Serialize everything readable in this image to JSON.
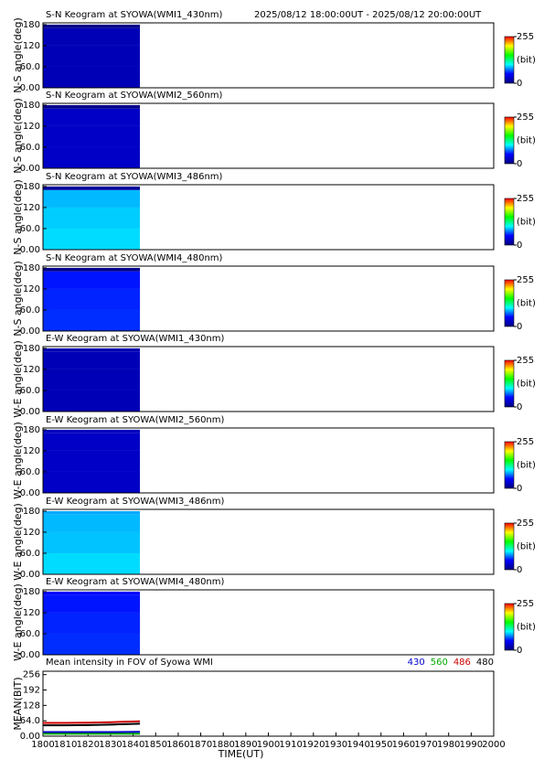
{
  "header": {
    "time_range": "2025/08/12 18:00:00UT - 2025/08/12 20:00:00UT"
  },
  "colormap": [
    "#000080",
    "#0000ff",
    "#00ffff",
    "#00ff00",
    "#ffff00",
    "#ff0000"
  ],
  "chart_data": [
    {
      "type": "keogram",
      "title": "S-N Keogram at SYOWA(WMI1_430nm)",
      "ylabel": "N-S angle(deg)",
      "xlim": [
        1800,
        2000
      ],
      "ylim": [
        0,
        185
      ],
      "yticks": [
        {
          "value": 0,
          "label": "0.00"
        },
        {
          "value": 60,
          "label": "60.0"
        },
        120,
        180
      ],
      "xbins": [
        1800,
        1843
      ],
      "ybins": [
        0,
        60,
        120,
        170,
        180
      ],
      "values": [
        22,
        22,
        22,
        5
      ],
      "colorbar": {
        "lim": [
          0,
          255
        ],
        "ticks": [
          0,
          255
        ],
        "label": "(bit)"
      }
    },
    {
      "type": "keogram",
      "title": "S-N Keogram at SYOWA(WMI2_560nm)",
      "ylabel": "N-S angle(deg)",
      "xlim": [
        1800,
        2000
      ],
      "ylim": [
        0,
        185
      ],
      "yticks": [
        {
          "value": 0,
          "label": "0.00"
        },
        {
          "value": 60,
          "label": "60.0"
        },
        120,
        180
      ],
      "xbins": [
        1800,
        1843
      ],
      "ybins": [
        0,
        60,
        120,
        170,
        180
      ],
      "values": [
        28,
        28,
        28,
        5
      ],
      "colorbar": {
        "lim": [
          0,
          255
        ],
        "ticks": [
          0,
          255
        ],
        "label": "(bit)"
      }
    },
    {
      "type": "keogram",
      "title": "S-N Keogram at SYOWA(WMI3_486nm)",
      "ylabel": "N-S angle(deg)",
      "xlim": [
        1800,
        2000
      ],
      "ylim": [
        0,
        185
      ],
      "yticks": [
        {
          "value": 0,
          "label": "0.00"
        },
        {
          "value": 60,
          "label": "60.0"
        },
        120,
        180
      ],
      "xbins": [
        1800,
        1843
      ],
      "ybins": [
        0,
        60,
        120,
        170,
        180
      ],
      "values": [
        95,
        92,
        88,
        10
      ],
      "colorbar": {
        "lim": [
          0,
          255
        ],
        "ticks": [
          0,
          255
        ],
        "label": "(bit)"
      }
    },
    {
      "type": "keogram",
      "title": "S-N Keogram at SYOWA(WMI4_480nm)",
      "ylabel": "N-S angle(deg)",
      "xlim": [
        1800,
        2000
      ],
      "ylim": [
        0,
        185
      ],
      "yticks": [
        {
          "value": 0,
          "label": "0.00"
        },
        {
          "value": 60,
          "label": "60.0"
        },
        120,
        180
      ],
      "xbins": [
        1800,
        1843
      ],
      "ybins": [
        0,
        60,
        120,
        170,
        180
      ],
      "values": [
        60,
        58,
        55,
        5
      ],
      "colorbar": {
        "lim": [
          0,
          255
        ],
        "ticks": [
          0,
          255
        ],
        "label": "(bit)"
      }
    },
    {
      "type": "keogram",
      "title": "E-W Keogram at SYOWA(WMI1_430nm)",
      "ylabel": "W-E angle(deg)",
      "xlim": [
        1800,
        2000
      ],
      "ylim": [
        0,
        185
      ],
      "yticks": [
        {
          "value": 0,
          "label": "0.00"
        },
        {
          "value": 60,
          "label": "60.0"
        },
        120,
        180
      ],
      "xbins": [
        1800,
        1843
      ],
      "ybins": [
        0,
        60,
        120,
        170,
        180
      ],
      "values": [
        22,
        22,
        22,
        20
      ],
      "colorbar": {
        "lim": [
          0,
          255
        ],
        "ticks": [
          0,
          255
        ],
        "label": "(bit)"
      }
    },
    {
      "type": "keogram",
      "title": "E-W Keogram at SYOWA(WMI2_560nm)",
      "ylabel": "W-E angle(deg)",
      "xlim": [
        1800,
        2000
      ],
      "ylim": [
        0,
        185
      ],
      "yticks": [
        {
          "value": 0,
          "label": "0.00"
        },
        {
          "value": 60,
          "label": "60.0"
        },
        120,
        180
      ],
      "xbins": [
        1800,
        1843
      ],
      "ybins": [
        0,
        60,
        120,
        170,
        180
      ],
      "values": [
        28,
        28,
        28,
        25
      ],
      "colorbar": {
        "lim": [
          0,
          255
        ],
        "ticks": [
          0,
          255
        ],
        "label": "(bit)"
      }
    },
    {
      "type": "keogram",
      "title": "E-W Keogram at SYOWA(WMI3_486nm)",
      "ylabel": "W-E angle(deg)",
      "xlim": [
        1800,
        2000
      ],
      "ylim": [
        0,
        185
      ],
      "yticks": [
        {
          "value": 0,
          "label": "0.00"
        },
        {
          "value": 60,
          "label": "60.0"
        },
        120,
        180
      ],
      "xbins": [
        1800,
        1843
      ],
      "ybins": [
        0,
        60,
        120,
        170,
        180
      ],
      "values": [
        95,
        90,
        88,
        85
      ],
      "colorbar": {
        "lim": [
          0,
          255
        ],
        "ticks": [
          0,
          255
        ],
        "label": "(bit)"
      }
    },
    {
      "type": "keogram",
      "title": "E-W Keogram at SYOWA(WMI4_480nm)",
      "ylabel": "W-E angle(deg)",
      "xlim": [
        1800,
        2000
      ],
      "ylim": [
        0,
        185
      ],
      "yticks": [
        {
          "value": 0,
          "label": "0.00"
        },
        {
          "value": 60,
          "label": "60.0"
        },
        120,
        180
      ],
      "xbins": [
        1800,
        1843
      ],
      "ybins": [
        0,
        60,
        120,
        170,
        180
      ],
      "values": [
        60,
        58,
        55,
        50
      ],
      "colorbar": {
        "lim": [
          0,
          255
        ],
        "ticks": [
          0,
          255
        ],
        "label": "(bit)"
      }
    },
    {
      "type": "line",
      "title": "Mean intensity in FOV of Syowa WMI",
      "ylabel": "MEAN(BIT)",
      "xlabel": "TIME(UT)",
      "xlim": [
        1800,
        2000
      ],
      "ylim": [
        0,
        270
      ],
      "xticks": [
        1800,
        1810,
        1820,
        1830,
        1840,
        1850,
        1860,
        1870,
        1880,
        1890,
        1900,
        1910,
        1920,
        1930,
        1940,
        1950,
        1960,
        1970,
        1980,
        1990,
        2000
      ],
      "yticks": [
        {
          "value": 0,
          "label": "0.00"
        },
        {
          "value": 64,
          "label": "64.0"
        },
        128,
        192,
        256
      ],
      "x": [
        1800,
        1810,
        1820,
        1830,
        1843
      ],
      "series": [
        {
          "name": "430",
          "color": "#0000cc",
          "values": [
            17,
            17,
            17,
            17,
            18
          ]
        },
        {
          "name": "560",
          "color": "#00aa00",
          "values": [
            10,
            10,
            10,
            10,
            10
          ]
        },
        {
          "name": "486",
          "color": "#cc0000",
          "values": [
            55,
            55,
            56,
            58,
            62
          ]
        },
        {
          "name": "480",
          "color": "#000000",
          "values": [
            45,
            45,
            46,
            48,
            52
          ]
        }
      ]
    }
  ]
}
